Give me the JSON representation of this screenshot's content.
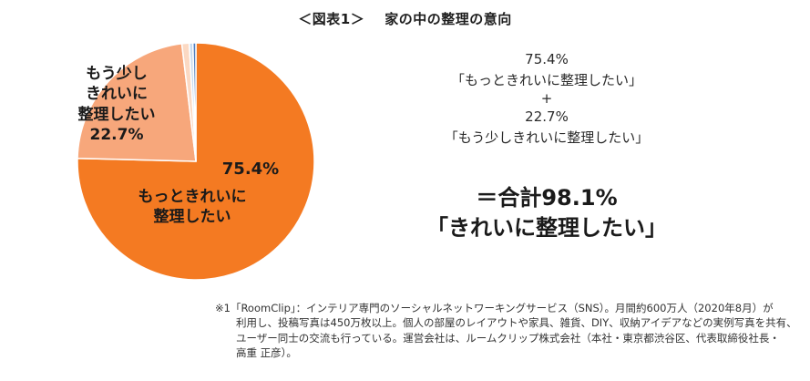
{
  "title": {
    "prefix": "＜図表1＞",
    "text": "家の中の整理の意向"
  },
  "chart_data": {
    "type": "pie",
    "slices": [
      {
        "label": "もっときれいに整理したい",
        "label_lines": [
          "もっときれいに",
          "整理したい"
        ],
        "value": 75.4,
        "value_label": "75.4%",
        "color": "#f47a22"
      },
      {
        "label": "もう少しきれいに整理したい",
        "label_lines": [
          "もう少し",
          "きれいに",
          "整理したい"
        ],
        "value": 22.7,
        "value_label": "22.7%",
        "color": "#f7a77b"
      },
      {
        "label": "",
        "value": 1.0,
        "color": "#fbd9c3"
      },
      {
        "label": "",
        "value": 0.5,
        "color": "#c8dcf0"
      },
      {
        "label": "",
        "value": 0.4,
        "color": "#4f7fc0"
      }
    ],
    "start_angle_deg": 0,
    "direction": "clockwise"
  },
  "summary": {
    "line1": "75.4%",
    "line2": "「もっときれいに整理したい」",
    "plus": "+",
    "line3": "22.7%",
    "line4": "「もう少しきれいに整理したい」",
    "total_line1": "＝合計98.1%",
    "total_line2": "「きれいに整理したい」"
  },
  "footnote": {
    "line1": "※1「RoomClip」：インテリア専門のソーシャルネットワーキングサービス（SNS）。月間約600万人（2020年8月）が",
    "line2": "利用し、投稿写真は450万枚以上。個人の部屋のレイアウトや家具、雑貨、DIY、収納アイデアなどの実例写真を共有、",
    "line3": "ユーザー同士の交流も行っている。運営会社は、ルームクリップ株式会社（本社・東京都渋谷区、代表取締役社長・",
    "line4": "高重 正彦）。"
  }
}
